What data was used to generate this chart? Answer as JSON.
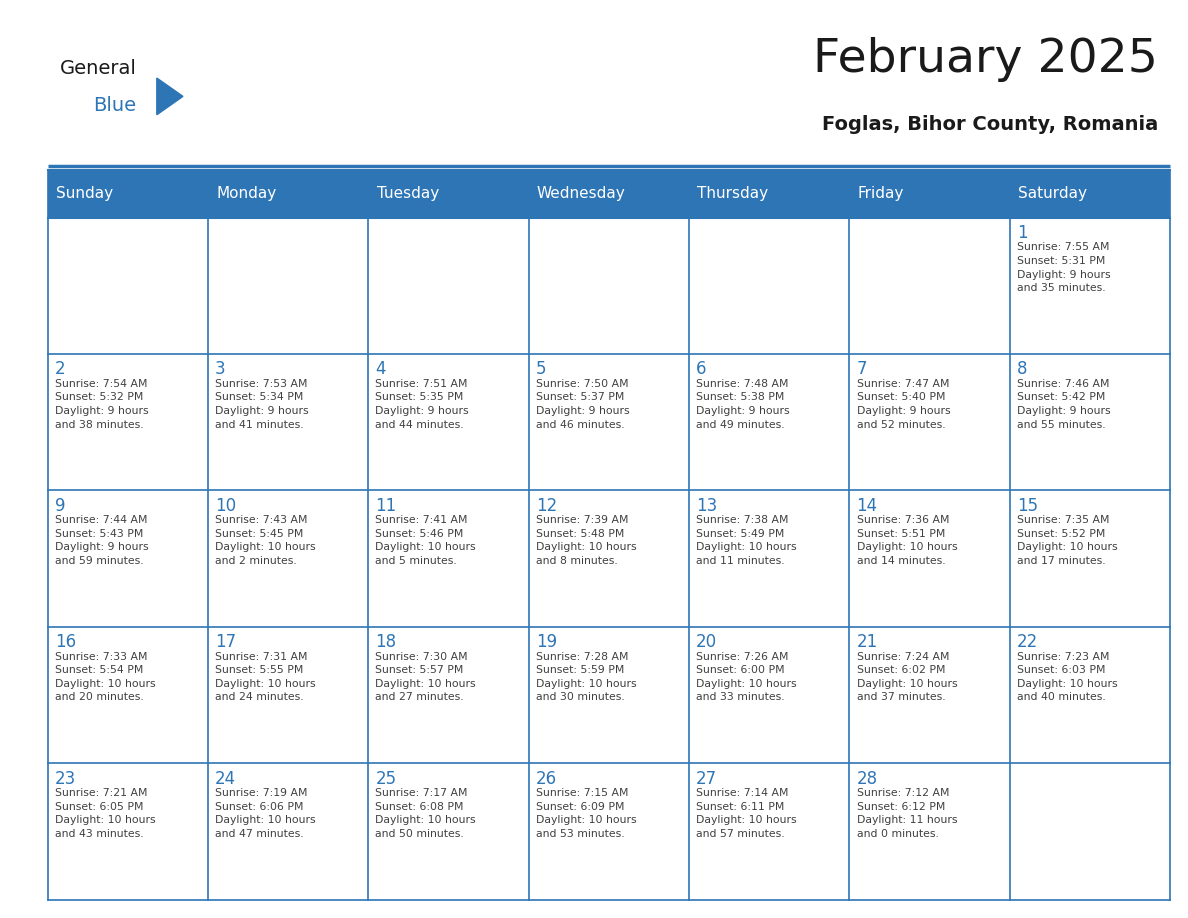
{
  "title": "February 2025",
  "subtitle": "Foglas, Bihor County, Romania",
  "days_of_week": [
    "Sunday",
    "Monday",
    "Tuesday",
    "Wednesday",
    "Thursday",
    "Friday",
    "Saturday"
  ],
  "header_bg_color": "#2E75B6",
  "header_text_color": "#FFFFFF",
  "cell_bg_color": "#FFFFFF",
  "border_color": "#2E75B6",
  "day_number_color": "#2E75B6",
  "text_color": "#404040",
  "title_color": "#1a1a1a",
  "logo_general_color": "#1a1a1a",
  "logo_blue_color": "#2E75B6",
  "calendar": [
    [
      {
        "day": null,
        "text": ""
      },
      {
        "day": null,
        "text": ""
      },
      {
        "day": null,
        "text": ""
      },
      {
        "day": null,
        "text": ""
      },
      {
        "day": null,
        "text": ""
      },
      {
        "day": null,
        "text": ""
      },
      {
        "day": 1,
        "text": "Sunrise: 7:55 AM\nSunset: 5:31 PM\nDaylight: 9 hours\nand 35 minutes."
      }
    ],
    [
      {
        "day": 2,
        "text": "Sunrise: 7:54 AM\nSunset: 5:32 PM\nDaylight: 9 hours\nand 38 minutes."
      },
      {
        "day": 3,
        "text": "Sunrise: 7:53 AM\nSunset: 5:34 PM\nDaylight: 9 hours\nand 41 minutes."
      },
      {
        "day": 4,
        "text": "Sunrise: 7:51 AM\nSunset: 5:35 PM\nDaylight: 9 hours\nand 44 minutes."
      },
      {
        "day": 5,
        "text": "Sunrise: 7:50 AM\nSunset: 5:37 PM\nDaylight: 9 hours\nand 46 minutes."
      },
      {
        "day": 6,
        "text": "Sunrise: 7:48 AM\nSunset: 5:38 PM\nDaylight: 9 hours\nand 49 minutes."
      },
      {
        "day": 7,
        "text": "Sunrise: 7:47 AM\nSunset: 5:40 PM\nDaylight: 9 hours\nand 52 minutes."
      },
      {
        "day": 8,
        "text": "Sunrise: 7:46 AM\nSunset: 5:42 PM\nDaylight: 9 hours\nand 55 minutes."
      }
    ],
    [
      {
        "day": 9,
        "text": "Sunrise: 7:44 AM\nSunset: 5:43 PM\nDaylight: 9 hours\nand 59 minutes."
      },
      {
        "day": 10,
        "text": "Sunrise: 7:43 AM\nSunset: 5:45 PM\nDaylight: 10 hours\nand 2 minutes."
      },
      {
        "day": 11,
        "text": "Sunrise: 7:41 AM\nSunset: 5:46 PM\nDaylight: 10 hours\nand 5 minutes."
      },
      {
        "day": 12,
        "text": "Sunrise: 7:39 AM\nSunset: 5:48 PM\nDaylight: 10 hours\nand 8 minutes."
      },
      {
        "day": 13,
        "text": "Sunrise: 7:38 AM\nSunset: 5:49 PM\nDaylight: 10 hours\nand 11 minutes."
      },
      {
        "day": 14,
        "text": "Sunrise: 7:36 AM\nSunset: 5:51 PM\nDaylight: 10 hours\nand 14 minutes."
      },
      {
        "day": 15,
        "text": "Sunrise: 7:35 AM\nSunset: 5:52 PM\nDaylight: 10 hours\nand 17 minutes."
      }
    ],
    [
      {
        "day": 16,
        "text": "Sunrise: 7:33 AM\nSunset: 5:54 PM\nDaylight: 10 hours\nand 20 minutes."
      },
      {
        "day": 17,
        "text": "Sunrise: 7:31 AM\nSunset: 5:55 PM\nDaylight: 10 hours\nand 24 minutes."
      },
      {
        "day": 18,
        "text": "Sunrise: 7:30 AM\nSunset: 5:57 PM\nDaylight: 10 hours\nand 27 minutes."
      },
      {
        "day": 19,
        "text": "Sunrise: 7:28 AM\nSunset: 5:59 PM\nDaylight: 10 hours\nand 30 minutes."
      },
      {
        "day": 20,
        "text": "Sunrise: 7:26 AM\nSunset: 6:00 PM\nDaylight: 10 hours\nand 33 minutes."
      },
      {
        "day": 21,
        "text": "Sunrise: 7:24 AM\nSunset: 6:02 PM\nDaylight: 10 hours\nand 37 minutes."
      },
      {
        "day": 22,
        "text": "Sunrise: 7:23 AM\nSunset: 6:03 PM\nDaylight: 10 hours\nand 40 minutes."
      }
    ],
    [
      {
        "day": 23,
        "text": "Sunrise: 7:21 AM\nSunset: 6:05 PM\nDaylight: 10 hours\nand 43 minutes."
      },
      {
        "day": 24,
        "text": "Sunrise: 7:19 AM\nSunset: 6:06 PM\nDaylight: 10 hours\nand 47 minutes."
      },
      {
        "day": 25,
        "text": "Sunrise: 7:17 AM\nSunset: 6:08 PM\nDaylight: 10 hours\nand 50 minutes."
      },
      {
        "day": 26,
        "text": "Sunrise: 7:15 AM\nSunset: 6:09 PM\nDaylight: 10 hours\nand 53 minutes."
      },
      {
        "day": 27,
        "text": "Sunrise: 7:14 AM\nSunset: 6:11 PM\nDaylight: 10 hours\nand 57 minutes."
      },
      {
        "day": 28,
        "text": "Sunrise: 7:12 AM\nSunset: 6:12 PM\nDaylight: 11 hours\nand 0 minutes."
      },
      {
        "day": null,
        "text": ""
      }
    ]
  ]
}
